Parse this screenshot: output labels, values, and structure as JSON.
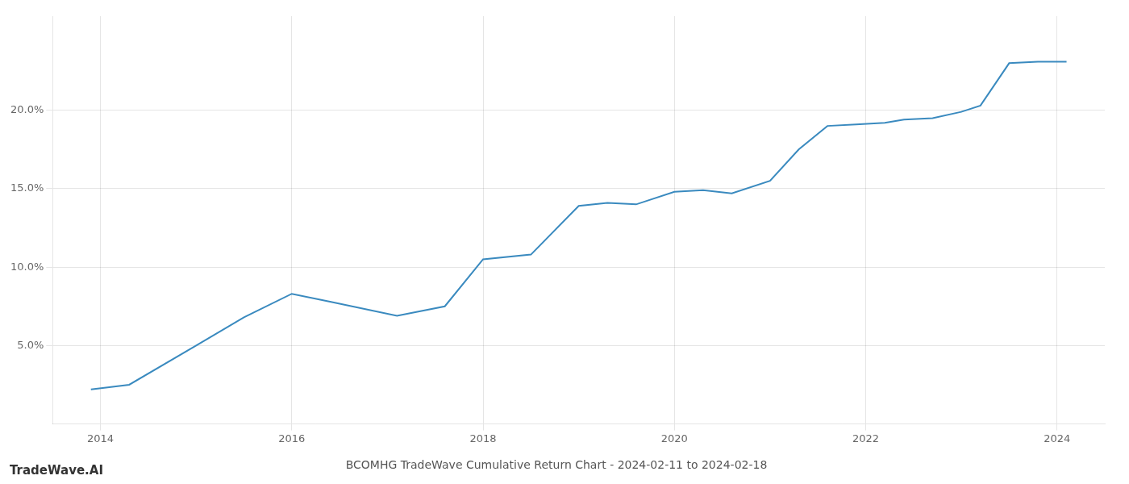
{
  "chart_data": {
    "type": "line",
    "title": "BCOMHG TradeWave Cumulative Return Chart - 2024-02-11 to 2024-02-18",
    "annotations": [
      "TradeWave.AI"
    ],
    "x": [
      2013.9,
      2014.3,
      2015.0,
      2015.5,
      2016.0,
      2016.4,
      2017.1,
      2017.6,
      2018.0,
      2018.5,
      2019.0,
      2019.3,
      2019.6,
      2020.0,
      2020.3,
      2020.6,
      2021.0,
      2021.3,
      2021.6,
      2021.9,
      2022.2,
      2022.4,
      2022.7,
      2023.0,
      2023.2,
      2023.5,
      2023.8,
      2024.0,
      2024.1
    ],
    "values": [
      2.2,
      2.5,
      5.0,
      6.8,
      8.3,
      7.8,
      6.9,
      7.5,
      10.5,
      10.8,
      13.9,
      14.1,
      14.0,
      14.8,
      14.9,
      14.7,
      15.5,
      17.5,
      19.0,
      19.1,
      19.2,
      19.4,
      19.5,
      19.9,
      20.3,
      23.0,
      23.1,
      23.1,
      23.1
    ],
    "color": "#3a8abf",
    "xlim": [
      2013.5,
      2024.5
    ],
    "xticks": [
      2014,
      2016,
      2018,
      2020,
      2022,
      2024
    ],
    "ylim": [
      0,
      26
    ],
    "yticks": [
      {
        "value": 5.0,
        "label": "5.0%"
      },
      {
        "value": 10.0,
        "label": "10.0%"
      },
      {
        "value": 15.0,
        "label": "15.0%"
      },
      {
        "value": 20.0,
        "label": "20.0%"
      }
    ],
    "grid": true
  }
}
